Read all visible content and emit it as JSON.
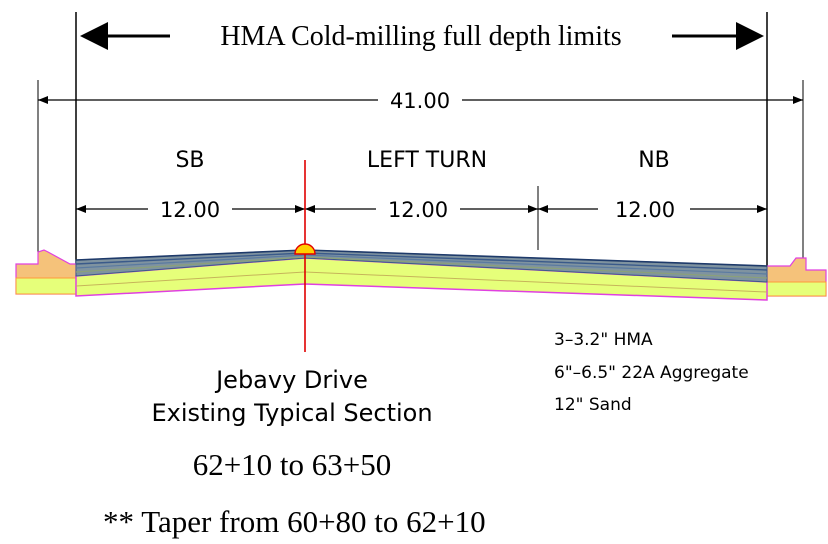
{
  "header": {
    "limits_label": "HMA Cold-milling full depth limits"
  },
  "dimensions": {
    "overall": "41.00",
    "lane_widths": [
      "12.00",
      "12.00",
      "12.00"
    ]
  },
  "lanes": {
    "left": "SB",
    "center": "LEFT TURN",
    "right": "NB"
  },
  "layers": {
    "hma": "3–3.2\" HMA",
    "aggregate": "6\"–6.5\" 22A Aggregate",
    "sand": "12\" Sand"
  },
  "section": {
    "road_name": "Jebavy Drive",
    "subtitle": "Existing Typical Section",
    "stations": "62+10 to 63+50",
    "taper_note": "** Taper from 60+80 to 62+10"
  },
  "colors": {
    "hma_top": "#3a5a8a",
    "hma_fill": "#6f8a9a",
    "aggregate_fill": "#e6ff7a",
    "base_outline": "#e040e0",
    "curb_fill": "#f5c27a",
    "centerline": "#e00000"
  }
}
